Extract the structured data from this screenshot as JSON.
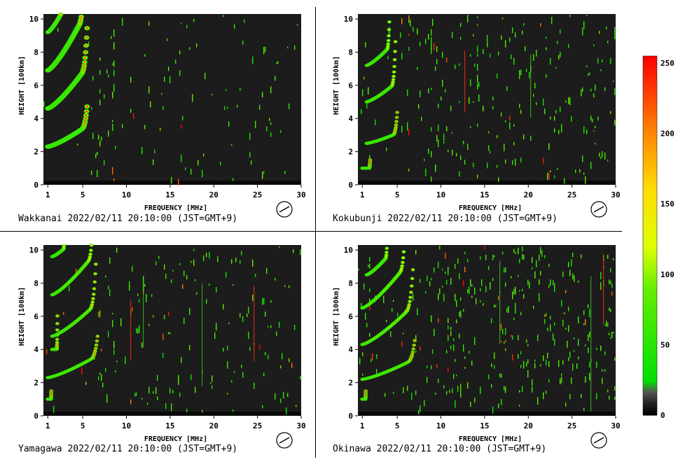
{
  "colors": {
    "background": "#ffffff",
    "plot_background": "#1c1c1c",
    "divider": "#000000",
    "trace_low": "#2bd81f",
    "trace_mid": "#b8e81a",
    "trace_high": "#ff2a0a",
    "noise": "#36c81c"
  },
  "colorbar": {
    "ticks": [
      "250",
      "200",
      "150",
      "100",
      "50",
      "0"
    ],
    "tick_values": [
      250,
      200,
      150,
      100,
      50,
      0
    ],
    "stops": [
      {
        "value": 0,
        "color": "#000000"
      },
      {
        "value": 8,
        "color": "#222222"
      },
      {
        "value": 16,
        "color": "#555555"
      },
      {
        "value": 24,
        "color": "#00e000"
      },
      {
        "value": 90,
        "color": "#66ee00"
      },
      {
        "value": 120,
        "color": "#ddff00"
      },
      {
        "value": 160,
        "color": "#ffdd00"
      },
      {
        "value": 200,
        "color": "#ff8800"
      },
      {
        "value": 255,
        "color": "#ff0000"
      }
    ],
    "range": [
      0,
      255
    ]
  },
  "chart_data": [
    {
      "type": "heatmap",
      "station": "Wakkanai",
      "caption": "Wakkanai 2022/02/11 20:10:00 (JST=GMT+9)",
      "xlabel": "FREQUENCY [MHz]",
      "ylabel": "HEIGHT [100km]",
      "xlim": [
        0.5,
        30
      ],
      "ylim": [
        0,
        10.3
      ],
      "xticks": [
        "1",
        "5",
        "10",
        "15",
        "20",
        "25",
        "30"
      ],
      "xtick_values": [
        1,
        5,
        10,
        15,
        20,
        25,
        30
      ],
      "yticks": [
        "0",
        "2",
        "4",
        "6",
        "8",
        "10"
      ],
      "ytick_values": [
        0,
        2,
        4,
        6,
        8,
        10
      ],
      "cutoff_mhz": 5.5,
      "noise_level": 0.35,
      "traces": [
        {
          "f0": 1.0,
          "h0": 2.3,
          "fc": 5.5,
          "k": 0.45,
          "w": 0.35,
          "v": 240
        },
        {
          "f0": 1.0,
          "h0": 4.6,
          "fc": 5.5,
          "k": 0.9,
          "w": 0.35,
          "v": 230
        },
        {
          "f0": 1.0,
          "h0": 6.9,
          "fc": 5.2,
          "k": 1.3,
          "w": 0.35,
          "v": 220
        },
        {
          "f0": 1.0,
          "h0": 9.2,
          "fc": 4.5,
          "k": 1.6,
          "w": 0.3,
          "v": 200
        }
      ]
    },
    {
      "type": "heatmap",
      "station": "Kokubunji",
      "caption": "Kokubunji 2022/02/11 20:10:00 (JST=GMT+9)",
      "xlabel": "FREQUENCY [MHz]",
      "ylabel": "HEIGHT [100km]",
      "xlim": [
        0.5,
        30
      ],
      "ylim": [
        0,
        10.3
      ],
      "xticks": [
        "1",
        "5",
        "10",
        "15",
        "20",
        "25",
        "30"
      ],
      "xtick_values": [
        1,
        5,
        10,
        15,
        20,
        25,
        30
      ],
      "yticks": [
        "0",
        "2",
        "4",
        "6",
        "8",
        "10"
      ],
      "ytick_values": [
        0,
        2,
        4,
        6,
        8,
        10
      ],
      "cutoff_mhz": 5.0,
      "noise_level": 0.6,
      "traces": [
        {
          "f0": 1.0,
          "h0": 1.0,
          "fc": 1.9,
          "k": 0.0,
          "w": 0.15,
          "v": 255
        },
        {
          "f0": 1.5,
          "h0": 2.5,
          "fc": 5.0,
          "k": 0.3,
          "w": 0.25,
          "v": 230
        },
        {
          "f0": 1.5,
          "h0": 5.0,
          "fc": 4.8,
          "k": 0.6,
          "w": 0.25,
          "v": 180
        },
        {
          "f0": 1.5,
          "h0": 7.2,
          "fc": 4.2,
          "k": 0.8,
          "w": 0.25,
          "v": 140
        }
      ]
    },
    {
      "type": "heatmap",
      "station": "Yamagawa",
      "caption": "Yamagawa 2022/02/11 20:10:00 (JST=GMT+9)",
      "xlabel": "FREQUENCY [MHz]",
      "ylabel": "HEIGHT [100km]",
      "xlim": [
        0.5,
        30
      ],
      "ylim": [
        0,
        10.3
      ],
      "xticks": [
        "1",
        "5",
        "10",
        "15",
        "20",
        "25",
        "30"
      ],
      "xtick_values": [
        1,
        5,
        10,
        15,
        20,
        25,
        30
      ],
      "yticks": [
        "0",
        "2",
        "4",
        "6",
        "8",
        "10"
      ],
      "ytick_values": [
        0,
        2,
        4,
        6,
        8,
        10
      ],
      "cutoff_mhz": 6.7,
      "noise_level": 0.45,
      "traces": [
        {
          "f0": 1.0,
          "h0": 1.0,
          "fc": 1.4,
          "k": 0.0,
          "w": 0.15,
          "v": 255
        },
        {
          "f0": 1.0,
          "h0": 2.3,
          "fc": 6.7,
          "k": 0.35,
          "w": 0.25,
          "v": 230
        },
        {
          "f0": 1.5,
          "h0": 4.0,
          "fc": 2.1,
          "k": 0.1,
          "w": 0.2,
          "v": 220
        },
        {
          "f0": 1.5,
          "h0": 4.8,
          "fc": 6.5,
          "k": 0.6,
          "w": 0.25,
          "v": 200
        },
        {
          "f0": 1.5,
          "h0": 7.3,
          "fc": 6.3,
          "k": 0.8,
          "w": 0.25,
          "v": 170
        },
        {
          "f0": 1.5,
          "h0": 9.6,
          "fc": 3.0,
          "k": 0.8,
          "w": 0.2,
          "v": 150
        }
      ]
    },
    {
      "type": "heatmap",
      "station": "Okinawa",
      "caption": "Okinawa 2022/02/11 20:10:00 (JST=GMT+9)",
      "xlabel": "FREQUENCY [MHz]",
      "ylabel": "HEIGHT [100km]",
      "xlim": [
        0.5,
        30
      ],
      "ylim": [
        0,
        10.3
      ],
      "xticks": [
        "1",
        "5",
        "10",
        "15",
        "20",
        "25",
        "30"
      ],
      "xtick_values": [
        1,
        5,
        10,
        15,
        20,
        25,
        30
      ],
      "yticks": [
        "0",
        "2",
        "4",
        "6",
        "8",
        "10"
      ],
      "ytick_values": [
        0,
        2,
        4,
        6,
        8,
        10
      ],
      "cutoff_mhz": 7.0,
      "noise_level": 0.8,
      "traces": [
        {
          "f0": 1.0,
          "h0": 1.0,
          "fc": 1.4,
          "k": 0.0,
          "w": 0.15,
          "v": 255
        },
        {
          "f0": 1.0,
          "h0": 2.2,
          "fc": 7.0,
          "k": 0.3,
          "w": 0.22,
          "v": 235
        },
        {
          "f0": 1.0,
          "h0": 4.3,
          "fc": 6.8,
          "k": 0.6,
          "w": 0.22,
          "v": 200
        },
        {
          "f0": 1.0,
          "h0": 6.5,
          "fc": 6.0,
          "k": 0.8,
          "w": 0.2,
          "v": 170
        },
        {
          "f0": 1.5,
          "h0": 8.5,
          "fc": 4.0,
          "k": 0.9,
          "w": 0.2,
          "v": 150
        }
      ]
    }
  ]
}
